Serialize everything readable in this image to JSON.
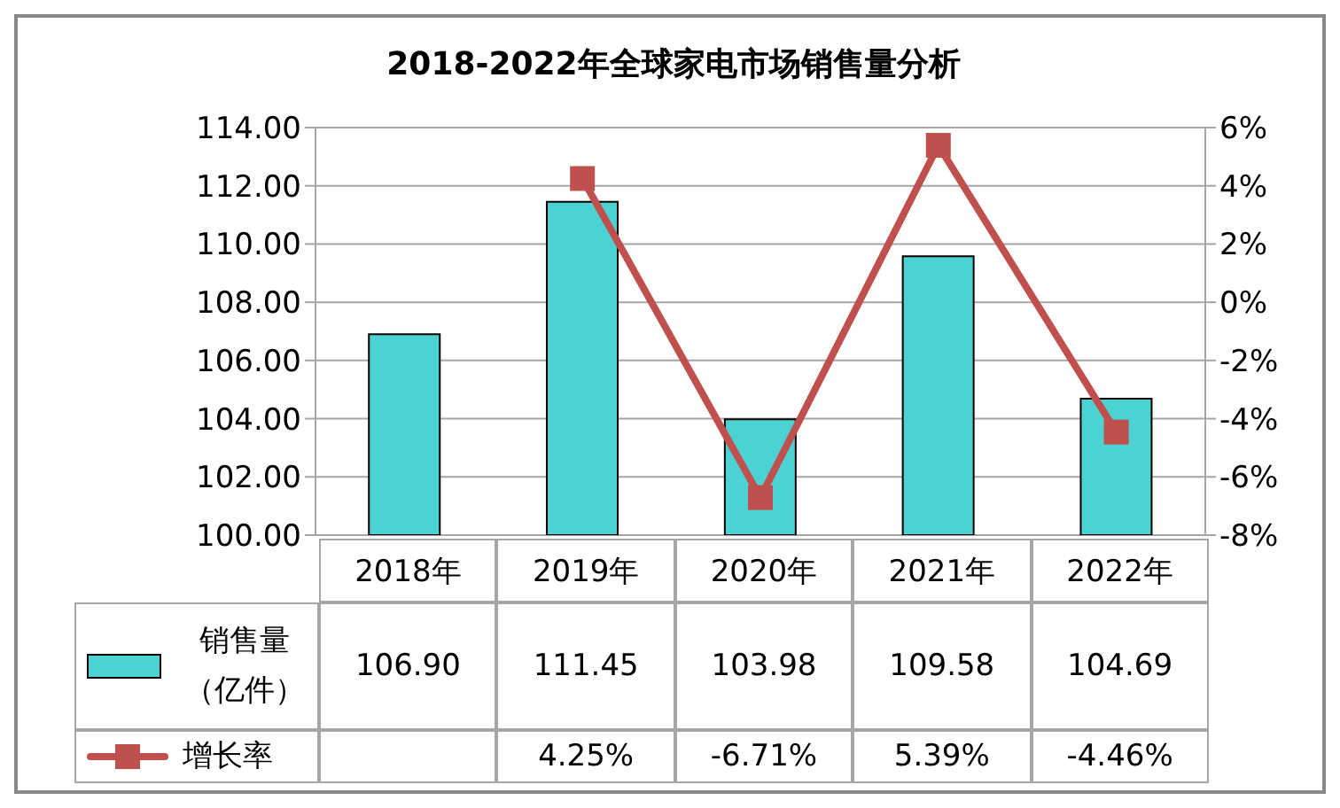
{
  "chart_data": {
    "type": "bar",
    "title": "2018-2022年全球家电市场销售量分析",
    "categories": [
      "2018年",
      "2019年",
      "2020年",
      "2021年",
      "2022年"
    ],
    "series": [
      {
        "name": "销售量（亿件）",
        "color": "#4dd2d4",
        "values": [
          106.9,
          111.45,
          103.98,
          109.58,
          104.69
        ],
        "value_labels": [
          "106.90",
          "111.45",
          "103.98",
          "109.58",
          "104.69"
        ]
      },
      {
        "name": "增长率",
        "type": "line",
        "axis": "y2",
        "color": "#c0504d",
        "marker": "square",
        "values": [
          null,
          4.25,
          -6.71,
          5.39,
          -4.46
        ],
        "value_labels": [
          null,
          "4.25%",
          "-6.71%",
          "5.39%",
          "-4.46%"
        ]
      }
    ],
    "ylim": [
      100,
      114
    ],
    "yticks": [
      {
        "value": 100,
        "label": "100.00"
      },
      {
        "value": 102,
        "label": "102.00"
      },
      {
        "value": 104,
        "label": "104.00"
      },
      {
        "value": 106,
        "label": "106.00"
      },
      {
        "value": 108,
        "label": "108.00"
      },
      {
        "value": 110,
        "label": "110.00"
      },
      {
        "value": 112,
        "label": "112.00"
      },
      {
        "value": 114,
        "label": "114.00"
      }
    ],
    "y2lim": [
      -8,
      6
    ],
    "y2ticks": [
      {
        "value": -8,
        "label": "-8%"
      },
      {
        "value": -6,
        "label": "-6%"
      },
      {
        "value": -4,
        "label": "-4%"
      },
      {
        "value": -2,
        "label": "-2%"
      },
      {
        "value": 0,
        "label": "0%"
      },
      {
        "value": 2,
        "label": "2%"
      },
      {
        "value": 4,
        "label": "4%"
      },
      {
        "value": 6,
        "label": "6%"
      }
    ],
    "grid": "y",
    "legend": "bottom"
  }
}
